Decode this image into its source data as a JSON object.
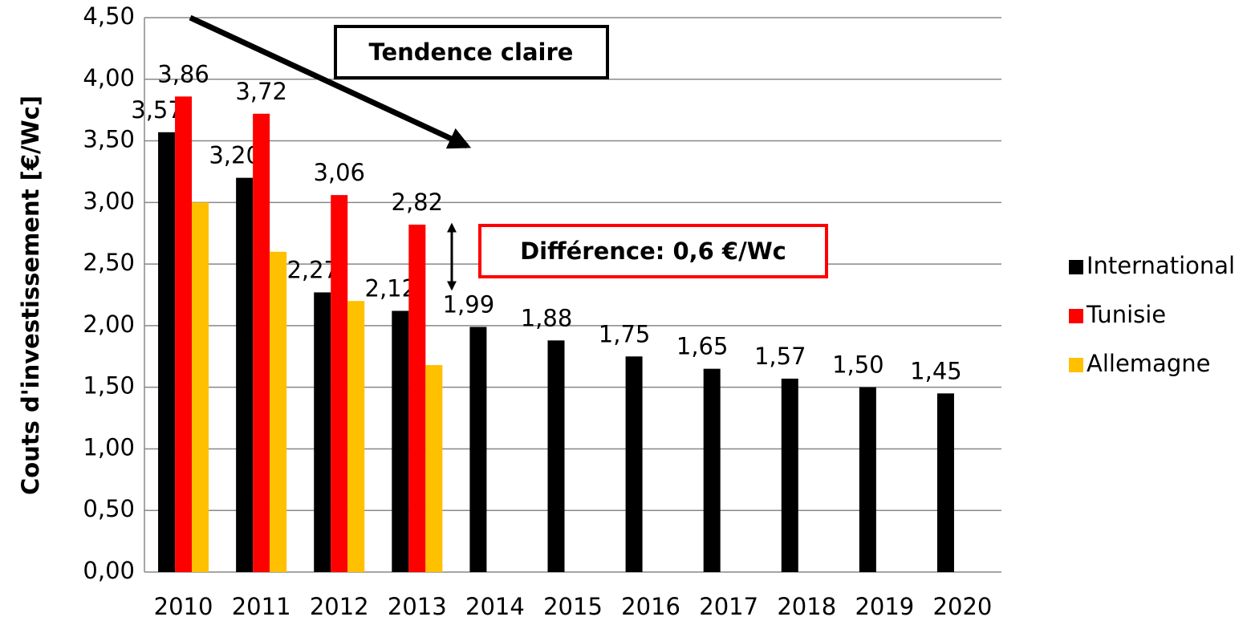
{
  "chart_data": {
    "type": "bar",
    "y_label": "Couts d'investissement [€/Wc]",
    "categories": [
      "2010",
      "2011",
      "2012",
      "2013",
      "2014",
      "2015",
      "2016",
      "2017",
      "2018",
      "2019",
      "2020"
    ],
    "series": [
      {
        "name": "International",
        "color": "#000000",
        "values": [
          3.57,
          3.2,
          2.27,
          2.12,
          1.99,
          1.88,
          1.75,
          1.65,
          1.57,
          1.5,
          1.45
        ],
        "value_labels": [
          "3,57",
          "3,20",
          "2,27",
          "2,12",
          "1,99",
          "1,88",
          "1,75",
          "1,65",
          "1,57",
          "1,50",
          "1,45"
        ]
      },
      {
        "name": "Tunisie",
        "color": "#ff0000",
        "values": [
          3.86,
          3.72,
          3.06,
          2.82,
          null,
          null,
          null,
          null,
          null,
          null,
          null
        ],
        "value_labels": [
          "3,86",
          "3,72",
          "3,06",
          "2,82",
          null,
          null,
          null,
          null,
          null,
          null,
          null
        ]
      },
      {
        "name": "Allemagne",
        "color": "#ffc000",
        "values": [
          3.0,
          2.6,
          2.2,
          1.68,
          null,
          null,
          null,
          null,
          null,
          null,
          null
        ]
      }
    ],
    "ylim": [
      0,
      4.5
    ],
    "yticks": [
      {
        "value": 0,
        "label": "0,00"
      },
      {
        "value": 0.5,
        "label": "0,50"
      },
      {
        "value": 1,
        "label": "1,00"
      },
      {
        "value": 1.5,
        "label": "1,50"
      },
      {
        "value": 2,
        "label": "2,00"
      },
      {
        "value": 2.5,
        "label": "2,50"
      },
      {
        "value": 3,
        "label": "3,00"
      },
      {
        "value": 3.5,
        "label": "3,50"
      },
      {
        "value": 4,
        "label": "4,00"
      },
      {
        "value": 4.5,
        "label": "4,50"
      }
    ],
    "grid": true,
    "legend": "right",
    "annotations": [
      "Tendence claire",
      "Différence: 0,6 €/Wc"
    ]
  }
}
